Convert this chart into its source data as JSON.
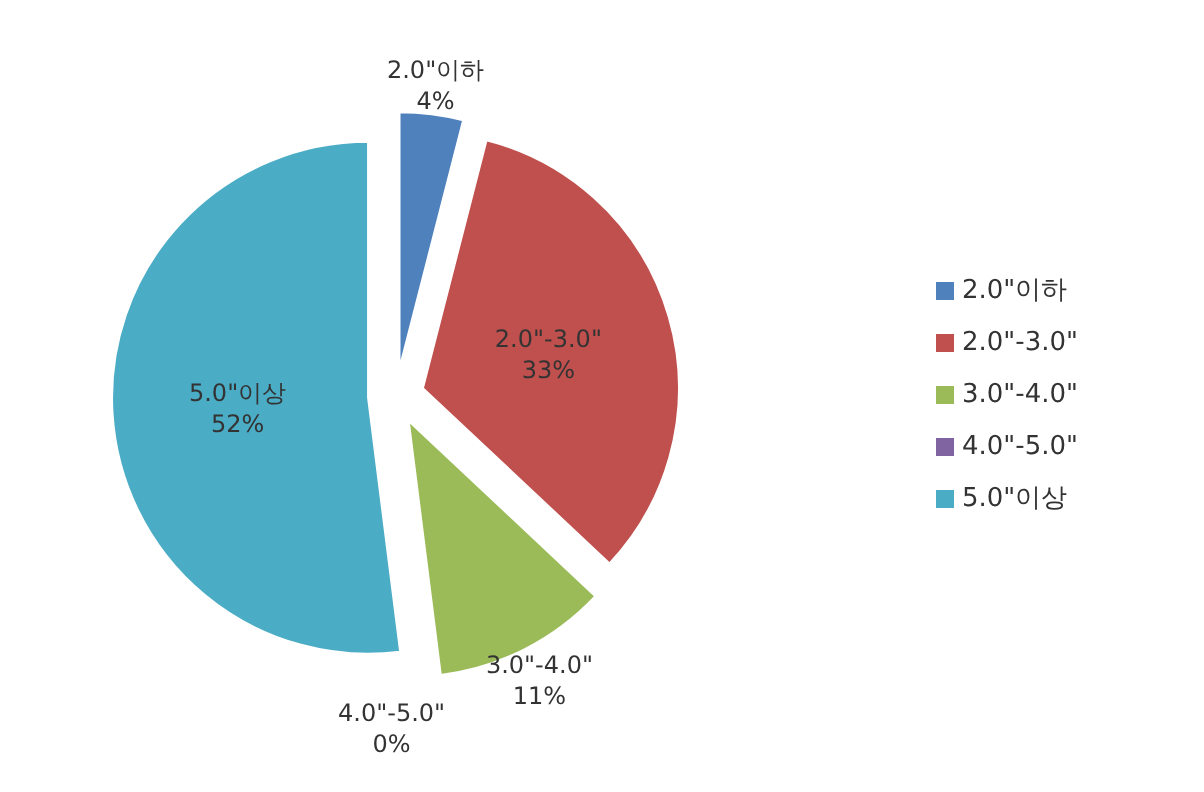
{
  "chart_data": {
    "type": "pie",
    "categories": [
      "2.0\"이하",
      "2.0\"-3.0\"",
      "3.0\"-4.0\"",
      "4.0\"-5.0\"",
      "5.0\"이상"
    ],
    "values": [
      4,
      33,
      11,
      0,
      52
    ],
    "value_labels": [
      "4%",
      "33%",
      "11%",
      "0%",
      "52%"
    ],
    "colors": [
      "#4f81bd",
      "#c0504d",
      "#9bbb59",
      "#8064a2",
      "#4bacc6"
    ],
    "legend": "right"
  }
}
